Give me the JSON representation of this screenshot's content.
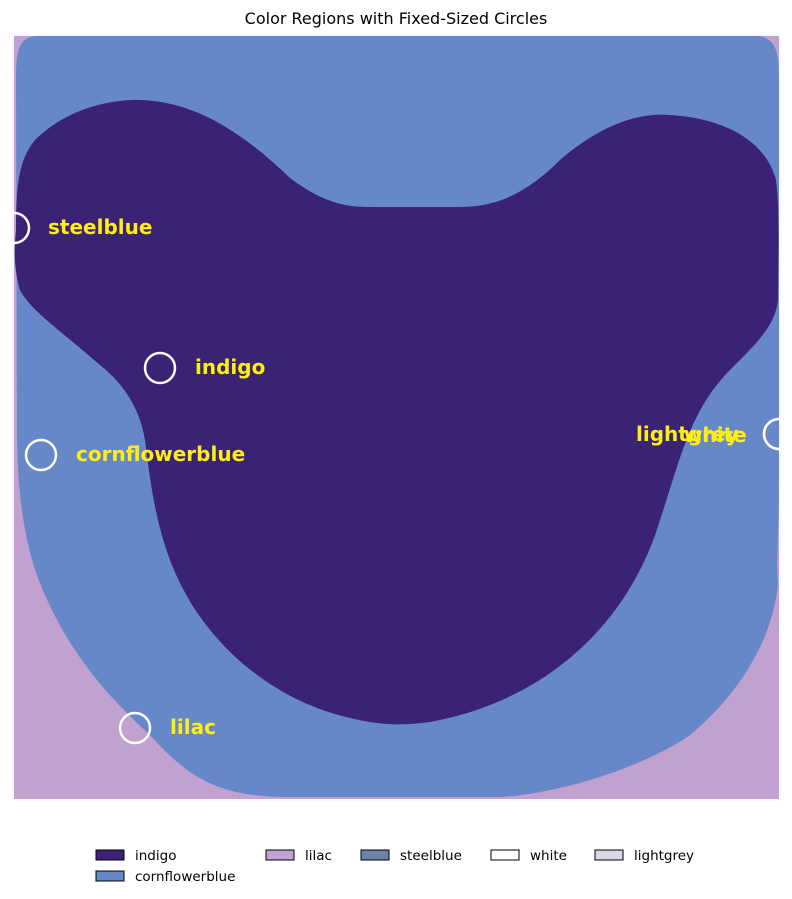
{
  "chart_data": {
    "type": "heatmap",
    "title": "Color Regions with Fixed-Sized Circles",
    "xlabel": "",
    "ylabel": "",
    "grid": false,
    "axes_visible": false,
    "legend_position": "bottom",
    "regions": [
      {
        "name": "indigo",
        "color": "#3a2274"
      },
      {
        "name": "cornflowerblue",
        "color": "#6788c8"
      },
      {
        "name": "lilac",
        "color": "#c0a1cf"
      }
    ],
    "circles": [
      {
        "label": "steelblue"
      },
      {
        "label": "indigo"
      },
      {
        "label": "cornflowerblue"
      },
      {
        "label": "lilac"
      },
      {
        "label": "lightgrey"
      },
      {
        "label": "white"
      }
    ],
    "circle_label_color": "#ffee11",
    "circle_edge_color": "#ffffff",
    "legend": [
      {
        "label": "indigo",
        "color": "#3a2274"
      },
      {
        "label": "cornflowerblue",
        "color": "#6788c8"
      },
      {
        "label": "lilac",
        "color": "#c0a1cf"
      },
      {
        "label": "steelblue",
        "color": "#6e83a7"
      },
      {
        "label": "white",
        "color": "#ffffff"
      },
      {
        "label": "lightgrey",
        "color": "#d8d9e4"
      }
    ]
  }
}
